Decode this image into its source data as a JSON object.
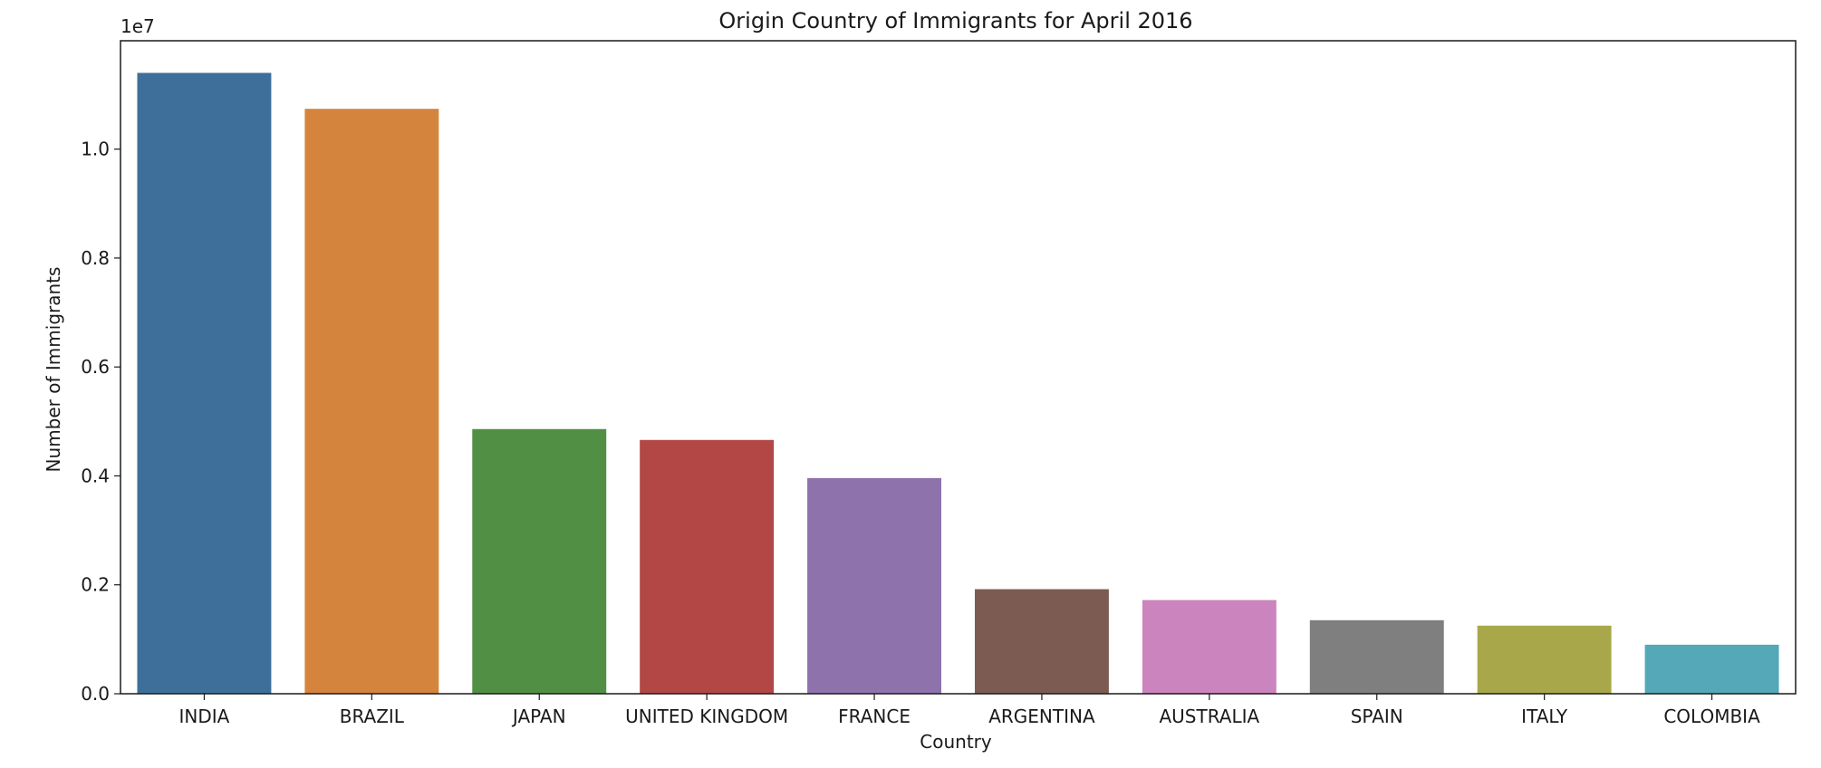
{
  "chart_data": {
    "type": "bar",
    "title": "Origin Country of Immigrants for April 2016",
    "xlabel": "Country",
    "ylabel": "Number of Immigrants",
    "y_offset_label": "1e7",
    "ylim": [
      0,
      11990000
    ],
    "y_ticks": [
      0,
      2000000,
      4000000,
      6000000,
      8000000,
      10000000
    ],
    "y_tick_labels": [
      "0.0",
      "0.2",
      "0.4",
      "0.6",
      "0.8",
      "1.0"
    ],
    "categories": [
      "INDIA",
      "BRAZIL",
      "JAPAN",
      "UNITED KINGDOM",
      "FRANCE",
      "ARGENTINA",
      "AUSTRALIA",
      "SPAIN",
      "ITALY",
      "COLOMBIA"
    ],
    "values": [
      11400000,
      10740000,
      4860000,
      4660000,
      3960000,
      1920000,
      1720000,
      1350000,
      1250000,
      900000
    ],
    "colors": [
      "#3e6f9b",
      "#d5843e",
      "#518f45",
      "#b34745",
      "#8e72ac",
      "#7c5c52",
      "#cb84bd",
      "#7f7f7f",
      "#a8a84b",
      "#54a8b8"
    ],
    "grid": false,
    "legend": "none"
  }
}
